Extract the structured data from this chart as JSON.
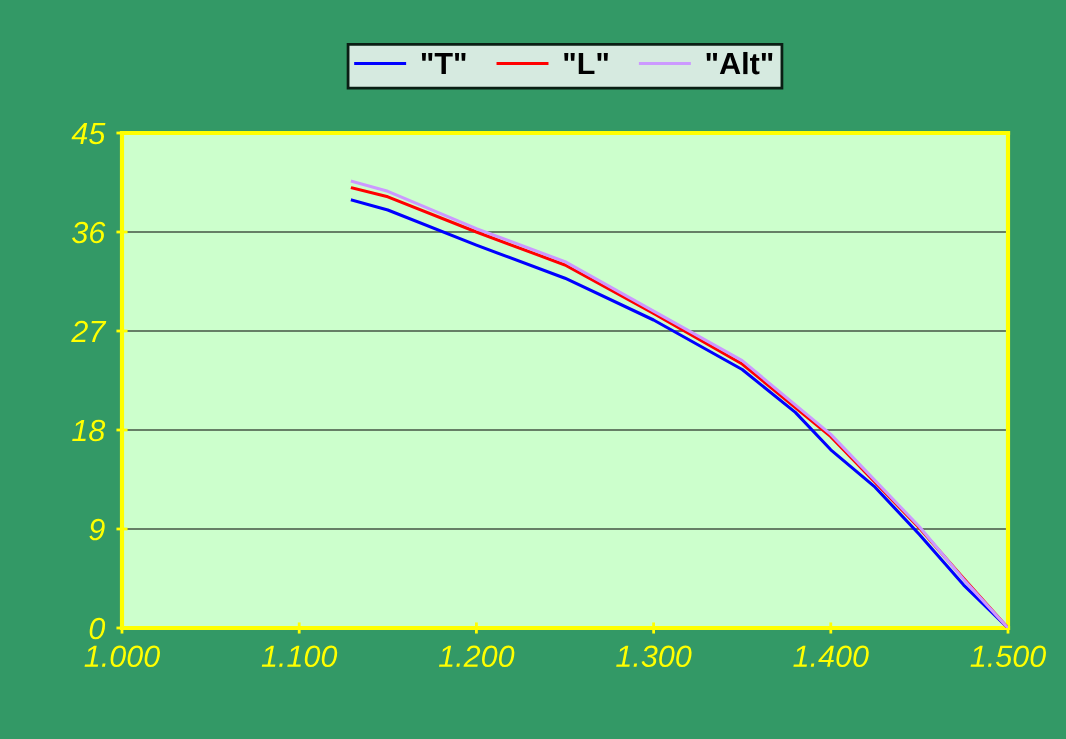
{
  "chart_data": {
    "type": "line",
    "legend": "top",
    "grid": "y",
    "marker": "none",
    "line_style": "solid",
    "xlim": [
      1.0,
      1.5
    ],
    "ylim": [
      0,
      45
    ],
    "xticks": [
      {
        "value": 1.0,
        "label": "1.000"
      },
      {
        "value": 1.1,
        "label": "1.100"
      },
      {
        "value": 1.2,
        "label": "1.200"
      },
      {
        "value": 1.3,
        "label": "1.300"
      },
      {
        "value": 1.4,
        "label": "1.400"
      },
      {
        "value": 1.5,
        "label": "1.500"
      }
    ],
    "yticks": [
      0,
      9,
      18,
      27,
      36,
      45
    ],
    "series": [
      {
        "name": "\"T\"",
        "color": "#0000ff",
        "x": [
          1.13,
          1.15,
          1.2,
          1.25,
          1.3,
          1.35,
          1.38,
          1.4,
          1.425,
          1.45,
          1.475,
          1.5
        ],
        "values": [
          38.9,
          38.0,
          34.8,
          31.8,
          28.0,
          23.5,
          19.6,
          16.2,
          12.8,
          8.5,
          3.9,
          0
        ]
      },
      {
        "name": "\"L\"",
        "color": "#ff0000",
        "x": [
          1.13,
          1.15,
          1.2,
          1.25,
          1.3,
          1.35,
          1.4,
          1.45,
          1.475,
          1.5
        ],
        "values": [
          40.0,
          39.2,
          36.0,
          33.0,
          28.6,
          24.0,
          17.4,
          9.1,
          4.5,
          0
        ]
      },
      {
        "name": "\"Alt\"",
        "color": "#cc99ff",
        "x": [
          1.13,
          1.15,
          1.2,
          1.25,
          1.3,
          1.35,
          1.4,
          1.45,
          1.475,
          1.5
        ],
        "values": [
          40.6,
          39.7,
          36.3,
          33.3,
          28.8,
          24.3,
          17.6,
          9.2,
          4.4,
          0
        ]
      }
    ]
  }
}
